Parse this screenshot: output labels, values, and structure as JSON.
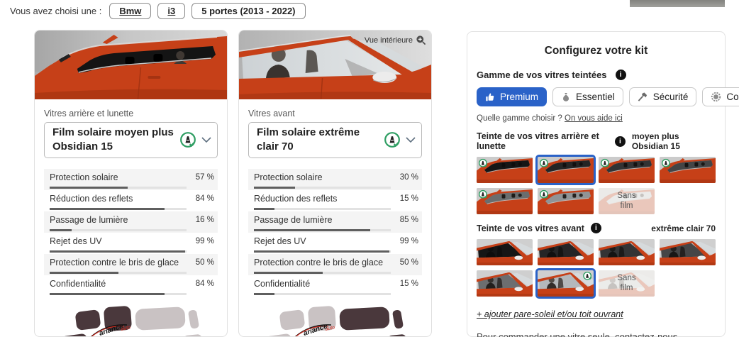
{
  "topbar": {
    "label": "Vous avez choisi une :",
    "chips": [
      {
        "label": "Bmw",
        "underline": true
      },
      {
        "label": "i3",
        "underline": true
      },
      {
        "label": "5 portes (2013 - 2022)",
        "underline": false
      }
    ]
  },
  "unit": "%",
  "rear_panel": {
    "window_label": "Vitres arrière et lunette",
    "selected_film": "Film solaire moyen plus Obsidian 15",
    "stats": [
      {
        "label": "Protection solaire",
        "value": 57
      },
      {
        "label": "Réduction des reflets",
        "value": 84
      },
      {
        "label": "Passage de lumière",
        "value": 16
      },
      {
        "label": "Rejet des UV",
        "value": 99
      },
      {
        "label": "Protection contre le bris de glace",
        "value": 50
      },
      {
        "label": "Confidentialité",
        "value": 84
      }
    ]
  },
  "front_panel": {
    "overlay_label": "Vue intérieure",
    "window_label": "Vitres avant",
    "selected_film": "Film solaire extrême clair 70",
    "stats": [
      {
        "label": "Protection solaire",
        "value": 30
      },
      {
        "label": "Réduction des reflets",
        "value": 15
      },
      {
        "label": "Passage de lumière",
        "value": 85
      },
      {
        "label": "Rejet des UV",
        "value": 99
      },
      {
        "label": "Protection contre le bris de glace",
        "value": 50
      },
      {
        "label": "Confidentialité",
        "value": 15
      }
    ]
  },
  "configurator": {
    "title": "Configurez votre kit",
    "gamme_label": "Gamme de vos vitres teintées",
    "gammes": [
      {
        "label": "Premium",
        "icon": "thumbs-up-icon",
        "selected": true
      },
      {
        "label": "Essentiel",
        "icon": "money-bag-icon",
        "selected": false
      },
      {
        "label": "Sécurité",
        "icon": "hammer-icon",
        "selected": false
      },
      {
        "label": "Couleur",
        "icon": "color-wheel-icon",
        "selected": false
      }
    ],
    "help_text": "Quelle gamme choisir ?",
    "help_link": "On vous aide ici",
    "rear_section": {
      "label": "Teinte de vos vitres arrière et lunette",
      "selected_name": "moyen plus Obsidian 15",
      "options": [
        {
          "tint": 0.95,
          "legal": true,
          "selected": false
        },
        {
          "tint": 0.87,
          "legal": true,
          "selected": true
        },
        {
          "tint": 0.8,
          "legal": true,
          "selected": false
        },
        {
          "tint": 0.7,
          "legal": true,
          "selected": false
        },
        {
          "tint": 0.5,
          "legal": true,
          "selected": false
        },
        {
          "tint": 0.3,
          "legal": true,
          "selected": false
        },
        {
          "sans_film": true,
          "label": "Sans film",
          "selected": false
        }
      ]
    },
    "front_section": {
      "label": "Teinte de vos vitres avant",
      "selected_name": "extrême clair 70",
      "options": [
        {
          "tint": 0.95,
          "legal": false,
          "selected": false
        },
        {
          "tint": 0.87,
          "legal": false,
          "selected": false
        },
        {
          "tint": 0.8,
          "legal": false,
          "selected": false
        },
        {
          "tint": 0.7,
          "legal": false,
          "selected": false
        },
        {
          "tint": 0.5,
          "legal": false,
          "selected": false
        },
        {
          "tint": 0.12,
          "legal": true,
          "selected": true
        },
        {
          "sans_film": true,
          "label": "Sans film",
          "selected": false
        }
      ]
    },
    "sunroof_link": "+ ajouter pare-soleil et/ou toit ouvrant",
    "order_text": "Pour commander une vitre seule, ",
    "order_link": "contactez-nous",
    "order_text_end": "."
  },
  "colors": {
    "accent_blue": "#2a62c8",
    "car_orange": "#c64018",
    "badge_green": "#2f9e63",
    "tint_dark": "#0c0c0c"
  }
}
